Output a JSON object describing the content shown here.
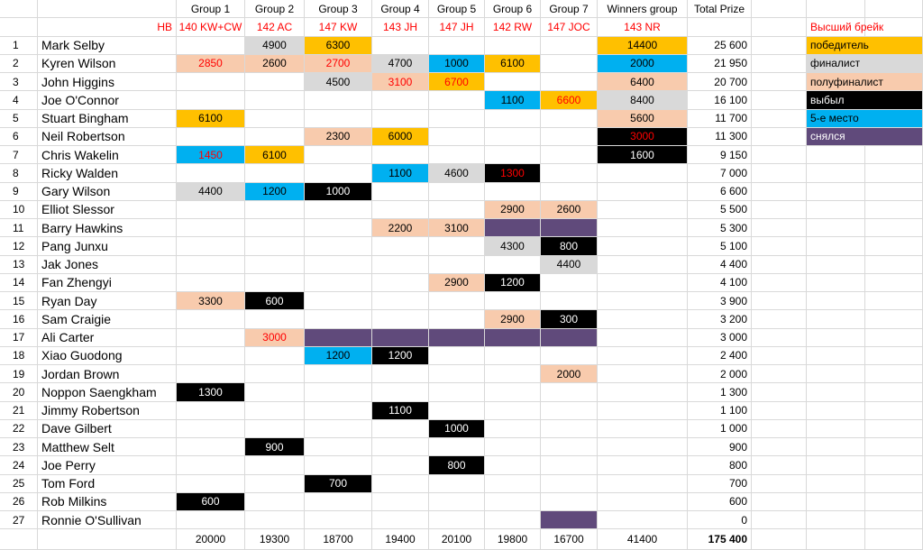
{
  "colors": {
    "winner": "#ffc000",
    "finalist": "#d9d9d9",
    "semifinalist": "#f8cbad",
    "eliminated": "#000000",
    "fifth": "#00b0f0",
    "withdrew": "#604a7b",
    "highbreak_text": "#ff0000"
  },
  "headers": [
    "Group 1",
    "Group 2",
    "Group 3",
    "Group 4",
    "Group 5",
    "Group 6",
    "Group 7",
    "Winners group",
    "Total Prize"
  ],
  "hb_label": "HB",
  "high_breaks": [
    "140 KW+CW",
    "142 AC",
    "147 KW",
    "143 JH",
    "147 JH",
    "142 RW",
    "147 JOC",
    "143 NR"
  ],
  "legend": [
    {
      "label": "Высший брейк",
      "status": "hb"
    },
    {
      "label": "победитель",
      "status": "winner"
    },
    {
      "label": "финалист",
      "status": "finalist"
    },
    {
      "label": "полуфиналист",
      "status": "semifinalist"
    },
    {
      "label": "выбыл",
      "status": "eliminated"
    },
    {
      "label": "5-е место",
      "status": "fifth"
    },
    {
      "label": "снялся",
      "status": "withdrew"
    }
  ],
  "players": [
    {
      "n": "1",
      "name": "Mark Selby",
      "total": "25 600",
      "cells": [
        null,
        {
          "v": "4900",
          "s": "finalist"
        },
        {
          "v": "6300",
          "s": "winner"
        },
        null,
        null,
        null,
        null,
        {
          "v": "14400",
          "s": "winner"
        }
      ]
    },
    {
      "n": "2",
      "name": "Kyren Wilson",
      "total": "21 950",
      "cells": [
        {
          "v": "2850",
          "s": "semifinalist",
          "hb": true
        },
        {
          "v": "2600",
          "s": "semifinalist"
        },
        {
          "v": "2700",
          "s": "semifinalist",
          "hb": true
        },
        {
          "v": "4700",
          "s": "finalist"
        },
        {
          "v": "1000",
          "s": "fifth"
        },
        {
          "v": "6100",
          "s": "winner"
        },
        null,
        {
          "v": "2000",
          "s": "fifth"
        }
      ]
    },
    {
      "n": "3",
      "name": "John Higgins",
      "total": "20 700",
      "cells": [
        null,
        null,
        {
          "v": "4500",
          "s": "finalist"
        },
        {
          "v": "3100",
          "s": "semifinalist",
          "hb": true
        },
        {
          "v": "6700",
          "s": "winner",
          "hb": true
        },
        null,
        null,
        {
          "v": "6400",
          "s": "semifinalist"
        }
      ]
    },
    {
      "n": "4",
      "name": "Joe O'Connor",
      "total": "16 100",
      "cells": [
        null,
        null,
        null,
        null,
        null,
        {
          "v": "1100",
          "s": "fifth"
        },
        {
          "v": "6600",
          "s": "winner",
          "hb": true
        },
        {
          "v": "8400",
          "s": "finalist"
        }
      ]
    },
    {
      "n": "5",
      "name": "Stuart Bingham",
      "total": "11 700",
      "cells": [
        {
          "v": "6100",
          "s": "winner"
        },
        null,
        null,
        null,
        null,
        null,
        null,
        {
          "v": "5600",
          "s": "semifinalist"
        }
      ]
    },
    {
      "n": "6",
      "name": "Neil Robertson",
      "total": "11 300",
      "cells": [
        null,
        null,
        {
          "v": "2300",
          "s": "semifinalist"
        },
        {
          "v": "6000",
          "s": "winner"
        },
        null,
        null,
        null,
        {
          "v": "3000",
          "s": "eliminated",
          "hb": true
        }
      ]
    },
    {
      "n": "7",
      "name": "Chris Wakelin",
      "total": "9 150",
      "cells": [
        {
          "v": "1450",
          "s": "fifth",
          "hb": true
        },
        {
          "v": "6100",
          "s": "winner"
        },
        null,
        null,
        null,
        null,
        null,
        {
          "v": "1600",
          "s": "eliminated"
        }
      ]
    },
    {
      "n": "8",
      "name": "Ricky Walden",
      "total": "7 000",
      "cells": [
        null,
        null,
        null,
        {
          "v": "1100",
          "s": "fifth"
        },
        {
          "v": "4600",
          "s": "finalist"
        },
        {
          "v": "1300",
          "s": "eliminated",
          "hb": true
        },
        null,
        null
      ]
    },
    {
      "n": "9",
      "name": "Gary Wilson",
      "total": "6 600",
      "cells": [
        {
          "v": "4400",
          "s": "finalist"
        },
        {
          "v": "1200",
          "s": "fifth"
        },
        {
          "v": "1000",
          "s": "eliminated"
        },
        null,
        null,
        null,
        null,
        null
      ]
    },
    {
      "n": "10",
      "name": "Elliot Slessor",
      "total": "5 500",
      "cells": [
        null,
        null,
        null,
        null,
        null,
        {
          "v": "2900",
          "s": "semifinalist"
        },
        {
          "v": "2600",
          "s": "semifinalist"
        },
        null
      ]
    },
    {
      "n": "11",
      "name": "Barry Hawkins",
      "total": "5 300",
      "cells": [
        null,
        null,
        null,
        {
          "v": "2200",
          "s": "semifinalist"
        },
        {
          "v": "3100",
          "s": "semifinalist"
        },
        {
          "v": "",
          "s": "withdrew"
        },
        {
          "v": "",
          "s": "withdrew"
        },
        null
      ]
    },
    {
      "n": "12",
      "name": "Pang Junxu",
      "total": "5 100",
      "cells": [
        null,
        null,
        null,
        null,
        null,
        {
          "v": "4300",
          "s": "finalist"
        },
        {
          "v": "800",
          "s": "eliminated"
        },
        null
      ]
    },
    {
      "n": "13",
      "name": "Jak Jones",
      "total": "4 400",
      "cells": [
        null,
        null,
        null,
        null,
        null,
        null,
        {
          "v": "4400",
          "s": "finalist"
        },
        null
      ]
    },
    {
      "n": "14",
      "name": "Fan Zhengyi",
      "total": "4 100",
      "cells": [
        null,
        null,
        null,
        null,
        {
          "v": "2900",
          "s": "semifinalist"
        },
        {
          "v": "1200",
          "s": "eliminated"
        },
        null,
        null
      ]
    },
    {
      "n": "15",
      "name": "Ryan Day",
      "total": "3 900",
      "cells": [
        {
          "v": "3300",
          "s": "semifinalist"
        },
        {
          "v": "600",
          "s": "eliminated"
        },
        null,
        null,
        null,
        null,
        null,
        null
      ]
    },
    {
      "n": "16",
      "name": "Sam Craigie",
      "total": "3 200",
      "cells": [
        null,
        null,
        null,
        null,
        null,
        {
          "v": "2900",
          "s": "semifinalist"
        },
        {
          "v": "300",
          "s": "eliminated"
        },
        null
      ]
    },
    {
      "n": "17",
      "name": "Ali Carter",
      "total": "3 000",
      "cells": [
        null,
        {
          "v": "3000",
          "s": "semifinalist",
          "hb": true
        },
        {
          "v": "",
          "s": "withdrew"
        },
        {
          "v": "",
          "s": "withdrew"
        },
        {
          "v": "",
          "s": "withdrew"
        },
        {
          "v": "",
          "s": "withdrew"
        },
        {
          "v": "",
          "s": "withdrew"
        },
        null
      ]
    },
    {
      "n": "18",
      "name": "Xiao Guodong",
      "total": "2 400",
      "cells": [
        null,
        null,
        {
          "v": "1200",
          "s": "fifth"
        },
        {
          "v": "1200",
          "s": "eliminated"
        },
        null,
        null,
        null,
        null
      ]
    },
    {
      "n": "19",
      "name": "Jordan Brown",
      "total": "2 000",
      "cells": [
        null,
        null,
        null,
        null,
        null,
        null,
        {
          "v": "2000",
          "s": "semifinalist"
        },
        null
      ]
    },
    {
      "n": "20",
      "name": "Noppon Saengkham",
      "total": "1 300",
      "cells": [
        {
          "v": "1300",
          "s": "eliminated"
        },
        null,
        null,
        null,
        null,
        null,
        null,
        null
      ]
    },
    {
      "n": "21",
      "name": "Jimmy Robertson",
      "total": "1 100",
      "cells": [
        null,
        null,
        null,
        {
          "v": "1100",
          "s": "eliminated"
        },
        null,
        null,
        null,
        null
      ]
    },
    {
      "n": "22",
      "name": "Dave Gilbert",
      "total": "1 000",
      "cells": [
        null,
        null,
        null,
        null,
        {
          "v": "1000",
          "s": "eliminated"
        },
        null,
        null,
        null
      ]
    },
    {
      "n": "23",
      "name": "Matthew Selt",
      "total": "900",
      "cells": [
        null,
        {
          "v": "900",
          "s": "eliminated"
        },
        null,
        null,
        null,
        null,
        null,
        null
      ]
    },
    {
      "n": "24",
      "name": "Joe Perry",
      "total": "800",
      "cells": [
        null,
        null,
        null,
        null,
        {
          "v": "800",
          "s": "eliminated"
        },
        null,
        null,
        null
      ]
    },
    {
      "n": "25",
      "name": "Tom Ford",
      "total": "700",
      "cells": [
        null,
        null,
        {
          "v": "700",
          "s": "eliminated"
        },
        null,
        null,
        null,
        null,
        null
      ]
    },
    {
      "n": "26",
      "name": "Rob Milkins",
      "total": "600",
      "cells": [
        {
          "v": "600",
          "s": "eliminated"
        },
        null,
        null,
        null,
        null,
        null,
        null,
        null
      ]
    },
    {
      "n": "27",
      "name": "Ronnie O'Sullivan",
      "total": "0",
      "cells": [
        null,
        null,
        null,
        null,
        null,
        null,
        {
          "v": "",
          "s": "withdrew"
        },
        null
      ]
    }
  ],
  "totals": [
    "20000",
    "19300",
    "18700",
    "19400",
    "20100",
    "19800",
    "16700",
    "41400",
    "175 400"
  ]
}
